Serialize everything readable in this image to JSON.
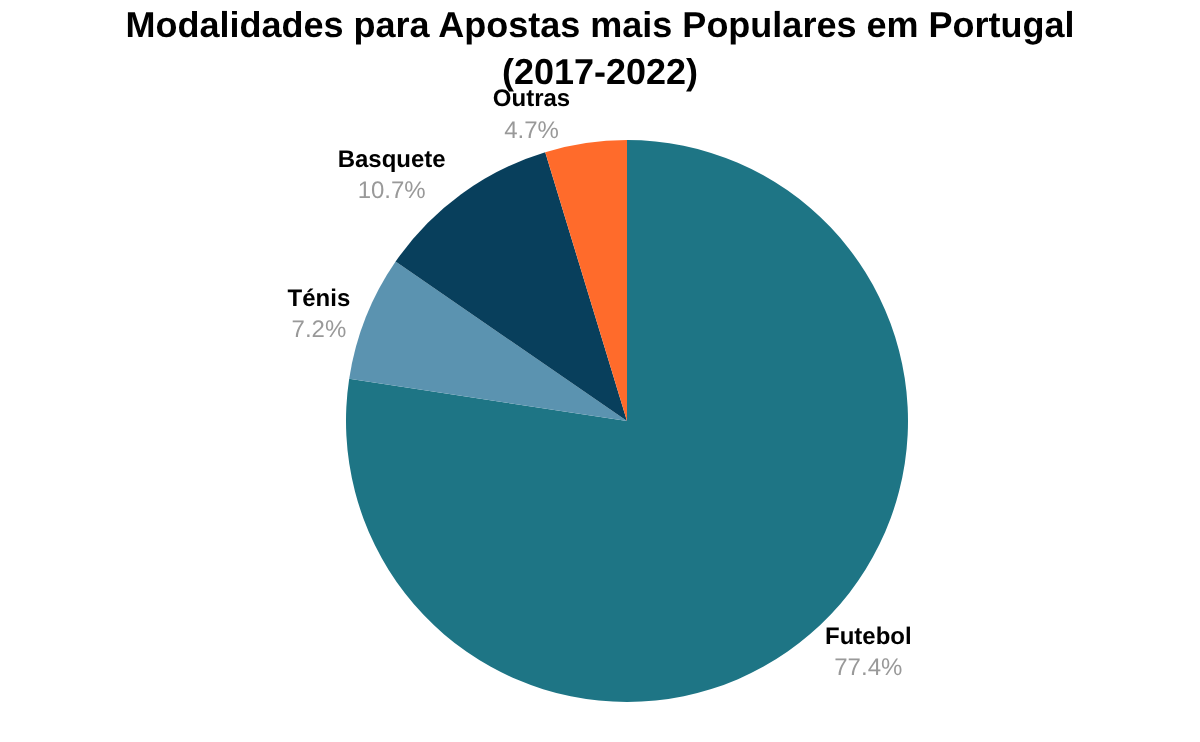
{
  "chart_data": {
    "type": "pie",
    "title": "Modalidades para Apostas mais Populares em Portugal\n(2017-2022)",
    "categories": [
      "Futebol",
      "Ténis",
      "Basquete",
      "Outras"
    ],
    "values": [
      77.4,
      7.2,
      10.7,
      4.7
    ],
    "colors": [
      "#1e7585",
      "#5b93b0",
      "#083f5c",
      "#ff6b2b"
    ],
    "value_labels": [
      "77.4%",
      "7.2%",
      "10.7%",
      "4.7%"
    ],
    "legend": false
  }
}
